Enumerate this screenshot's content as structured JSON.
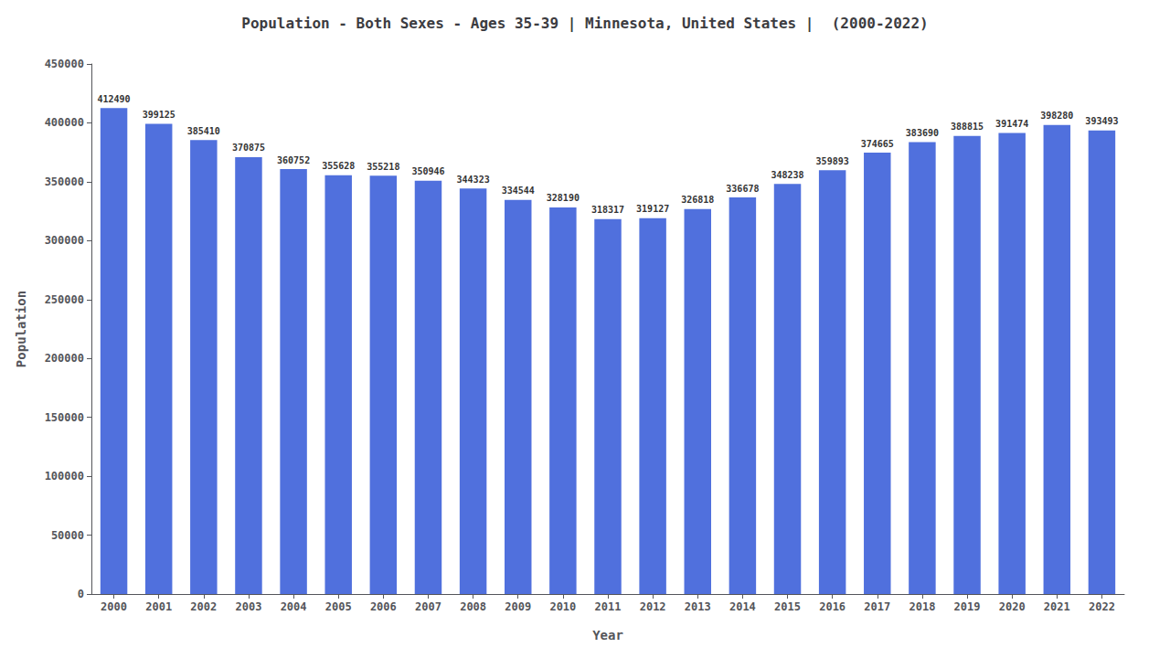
{
  "chart_data": {
    "type": "bar",
    "title": "Population - Both Sexes - Ages 35-39 | Minnesota, United States |  (2000-2022)",
    "xlabel": "Year",
    "ylabel": "Population",
    "categories": [
      "2000",
      "2001",
      "2002",
      "2003",
      "2004",
      "2005",
      "2006",
      "2007",
      "2008",
      "2009",
      "2010",
      "2011",
      "2012",
      "2013",
      "2014",
      "2015",
      "2016",
      "2017",
      "2018",
      "2019",
      "2020",
      "2021",
      "2022"
    ],
    "values": [
      412490,
      399125,
      385410,
      370875,
      360752,
      355628,
      355218,
      350946,
      344323,
      334544,
      328190,
      318317,
      319127,
      326818,
      336678,
      348238,
      359893,
      374665,
      383690,
      388815,
      391474,
      398280,
      393493
    ],
    "ylim": [
      0,
      450000
    ],
    "yticks": [
      0,
      50000,
      100000,
      150000,
      200000,
      250000,
      300000,
      350000,
      400000,
      450000
    ],
    "grid": false,
    "data_labels": true
  }
}
